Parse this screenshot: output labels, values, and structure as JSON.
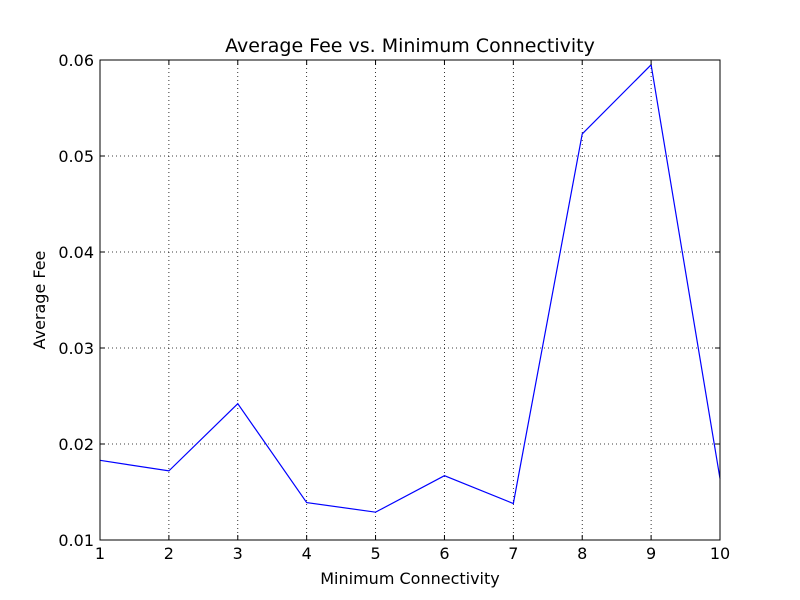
{
  "chart_data": {
    "type": "line",
    "title": "Average Fee vs. Minimum Connectivity",
    "xlabel": "Minimum Connectivity",
    "ylabel": "Average Fee",
    "xlim": [
      1,
      10
    ],
    "ylim": [
      0.01,
      0.06
    ],
    "x_ticks": [
      1,
      2,
      3,
      4,
      5,
      6,
      7,
      8,
      9,
      10
    ],
    "x_tick_labels": [
      "1",
      "2",
      "3",
      "4",
      "5",
      "6",
      "7",
      "8",
      "9",
      "10"
    ],
    "y_ticks": [
      0.01,
      0.02,
      0.03,
      0.04,
      0.05,
      0.06
    ],
    "y_tick_labels": [
      "0.01",
      "0.02",
      "0.03",
      "0.04",
      "0.05",
      "0.06"
    ],
    "grid": true,
    "series": [
      {
        "color": "#0000ff",
        "x": [
          1,
          2,
          3,
          4,
          5,
          6,
          7,
          8,
          9,
          10
        ],
        "y": [
          0.0183,
          0.0172,
          0.0242,
          0.0139,
          0.0129,
          0.0167,
          0.0138,
          0.0523,
          0.0595,
          0.0164
        ]
      }
    ]
  }
}
